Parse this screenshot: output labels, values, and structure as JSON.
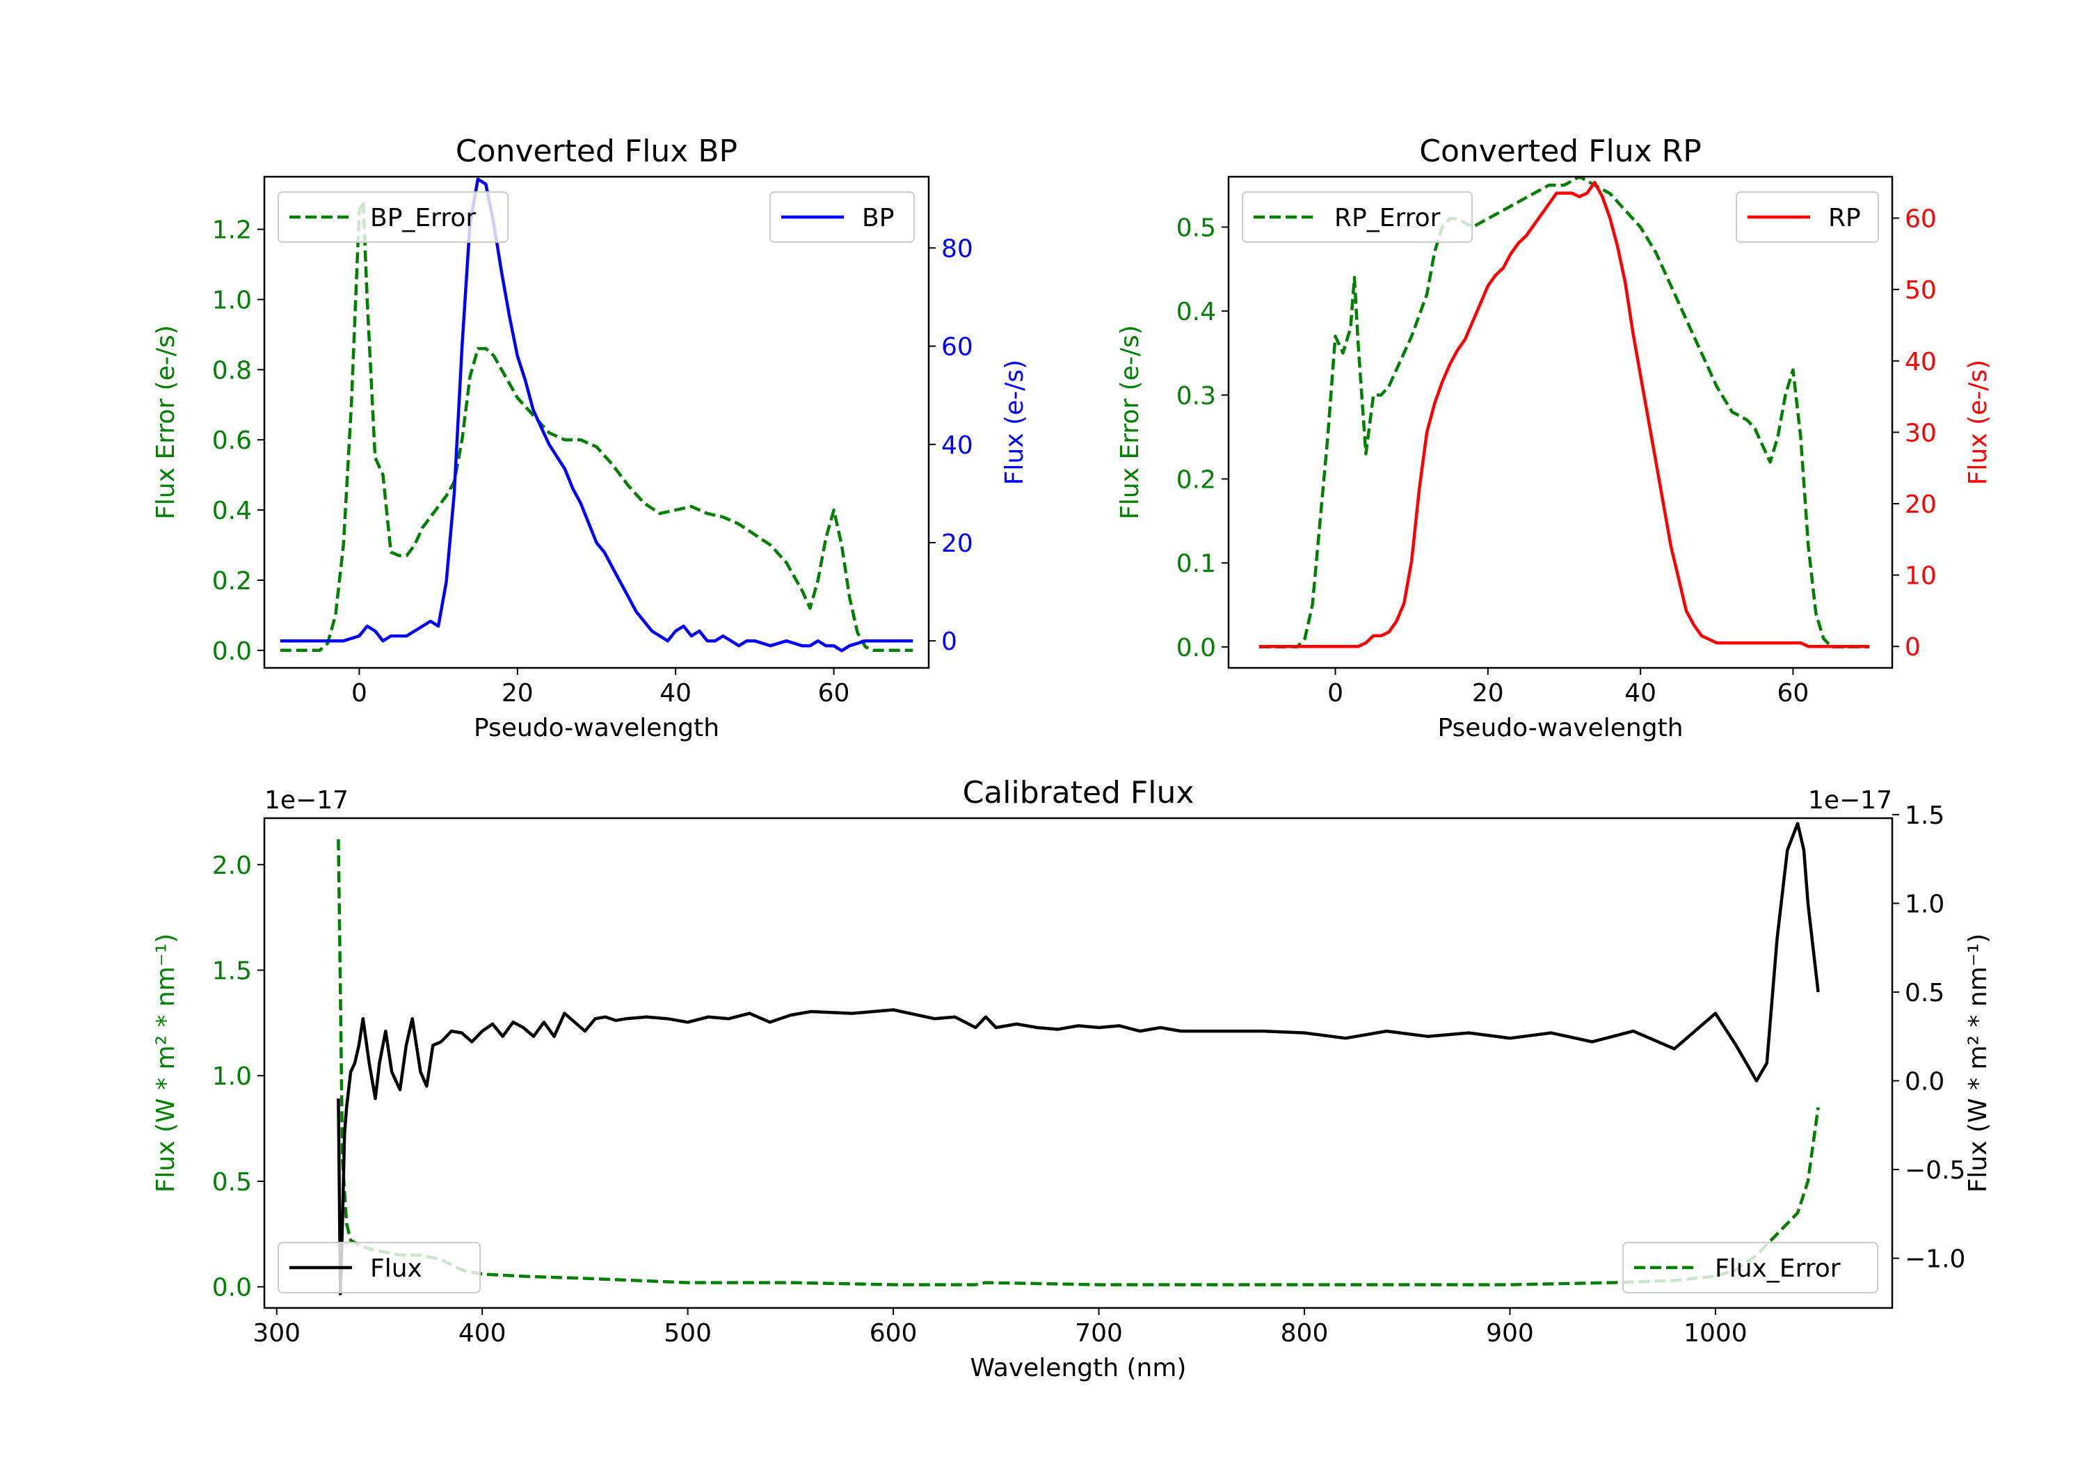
{
  "chart_data": [
    {
      "type": "line",
      "title": "Converted Flux BP",
      "xlabel": "Pseudo-wavelength",
      "ylabel_left": "Flux Error (e-/s)",
      "ylabel_right": "Flux (e-/s)",
      "xlim": [
        -12,
        72
      ],
      "ylim_left": [
        -0.05,
        1.35
      ],
      "ylim_right": [
        -5.5,
        94.5
      ],
      "xticks": [
        "0",
        "20",
        "40",
        "60"
      ],
      "xtick_values": [
        0,
        20,
        40,
        60
      ],
      "yticks_left": [
        "0.0",
        "0.2",
        "0.4",
        "0.6",
        "0.8",
        "1.0",
        "1.2"
      ],
      "ytick_values_left": [
        0.0,
        0.2,
        0.4,
        0.6,
        0.8,
        1.0,
        1.2
      ],
      "yticks_right": [
        "0",
        "20",
        "40",
        "60",
        "80"
      ],
      "ytick_values_right": [
        0,
        20,
        40,
        60,
        80
      ],
      "series": [
        {
          "name": "BP_Error",
          "axis": "left",
          "color": "#008000",
          "style": "dashed",
          "x": [
            -10,
            -5,
            -4,
            -3,
            -2,
            -1,
            0,
            0.5,
            1,
            2,
            3,
            4,
            5,
            6,
            7,
            8,
            9,
            10,
            11,
            12,
            13,
            14,
            15,
            16,
            17,
            18,
            19,
            20,
            22,
            24,
            26,
            28,
            30,
            32,
            34,
            36,
            38,
            40,
            42,
            44,
            46,
            48,
            50,
            52,
            54,
            56,
            57,
            58,
            59,
            60,
            61,
            62,
            63,
            64,
            65,
            70
          ],
          "values": [
            0,
            0,
            0.02,
            0.1,
            0.3,
            0.7,
            1.25,
            1.28,
            1.0,
            0.55,
            0.5,
            0.28,
            0.27,
            0.27,
            0.3,
            0.35,
            0.38,
            0.41,
            0.44,
            0.48,
            0.6,
            0.78,
            0.86,
            0.86,
            0.84,
            0.8,
            0.76,
            0.72,
            0.67,
            0.62,
            0.6,
            0.6,
            0.58,
            0.53,
            0.47,
            0.42,
            0.39,
            0.4,
            0.41,
            0.39,
            0.38,
            0.36,
            0.33,
            0.3,
            0.25,
            0.17,
            0.12,
            0.2,
            0.32,
            0.4,
            0.3,
            0.15,
            0.05,
            0.01,
            0,
            0
          ]
        },
        {
          "name": "BP",
          "axis": "right",
          "color": "#0000ff",
          "style": "solid",
          "x": [
            -10,
            -2,
            0,
            1,
            2,
            3,
            4,
            5,
            6,
            7,
            8,
            9,
            10,
            11,
            12,
            13,
            14,
            15,
            16,
            17,
            18,
            19,
            20,
            21,
            22,
            24,
            26,
            27,
            28,
            29,
            30,
            31,
            32,
            33,
            34,
            35,
            36,
            37,
            38,
            39,
            40,
            41,
            42,
            43,
            44,
            45,
            46,
            47,
            48,
            49,
            50,
            52,
            54,
            56,
            57,
            58,
            59,
            60,
            61,
            62,
            64,
            70
          ],
          "values": [
            0,
            0,
            1,
            3,
            2,
            0,
            1,
            1,
            1,
            2,
            3,
            4,
            3,
            12,
            30,
            60,
            85,
            94,
            93,
            85,
            75,
            66,
            58,
            53,
            47,
            40,
            35,
            31,
            28,
            24,
            20,
            18,
            15,
            12,
            9,
            6,
            4,
            2,
            1,
            0,
            2,
            3,
            1,
            2,
            0,
            0,
            1,
            0,
            -1,
            0,
            0,
            -1,
            0,
            -1,
            -1,
            0,
            -1,
            -1,
            -2,
            -1,
            0,
            0
          ]
        }
      ]
    },
    {
      "type": "line",
      "title": "Converted Flux RP",
      "xlabel": "Pseudo-wavelength",
      "ylabel_left": "Flux Error (e-/s)",
      "ylabel_right": "Flux (e-/s)",
      "xlim": [
        -14,
        73
      ],
      "ylim_left": [
        -0.025,
        0.56
      ],
      "ylim_right": [
        -3.0,
        65.8
      ],
      "xticks": [
        "0",
        "20",
        "40",
        "60"
      ],
      "xtick_values": [
        0,
        20,
        40,
        60
      ],
      "yticks_left": [
        "0.0",
        "0.1",
        "0.2",
        "0.3",
        "0.4",
        "0.5"
      ],
      "ytick_values_left": [
        0.0,
        0.1,
        0.2,
        0.3,
        0.4,
        0.5
      ],
      "yticks_right": [
        "0",
        "10",
        "20",
        "30",
        "40",
        "50",
        "60"
      ],
      "ytick_values_right": [
        0,
        10,
        20,
        30,
        40,
        50,
        60
      ],
      "series": [
        {
          "name": "RP_Error",
          "axis": "left",
          "color": "#008000",
          "style": "dashed",
          "x": [
            -10,
            -5,
            -4,
            -3,
            -2,
            -1,
            0,
            1,
            2,
            2.5,
            3,
            4,
            5,
            6,
            7,
            8,
            10,
            12,
            13,
            14,
            15,
            16,
            18,
            20,
            22,
            24,
            26,
            28,
            30,
            32,
            34,
            36,
            38,
            40,
            42,
            44,
            46,
            48,
            50,
            52,
            54,
            55,
            56,
            57,
            58,
            59,
            60,
            61,
            62,
            63,
            64,
            65,
            66,
            70
          ],
          "values": [
            0,
            0,
            0.01,
            0.05,
            0.15,
            0.25,
            0.37,
            0.35,
            0.38,
            0.44,
            0.36,
            0.23,
            0.3,
            0.3,
            0.31,
            0.33,
            0.37,
            0.42,
            0.47,
            0.5,
            0.51,
            0.51,
            0.5,
            0.51,
            0.52,
            0.53,
            0.54,
            0.55,
            0.55,
            0.56,
            0.55,
            0.54,
            0.52,
            0.5,
            0.47,
            0.43,
            0.39,
            0.35,
            0.31,
            0.28,
            0.27,
            0.26,
            0.24,
            0.22,
            0.25,
            0.3,
            0.33,
            0.25,
            0.12,
            0.04,
            0.01,
            0,
            0,
            0
          ]
        },
        {
          "name": "RP",
          "axis": "right",
          "color": "#ff0000",
          "style": "solid",
          "x": [
            -10,
            0,
            2,
            3,
            4,
            5,
            6,
            7,
            8,
            9,
            10,
            11,
            12,
            13,
            14,
            15,
            16,
            17,
            18,
            19,
            20,
            21,
            22,
            23,
            24,
            25,
            26,
            27,
            28,
            29,
            30,
            31,
            32,
            33,
            34,
            35,
            36,
            37,
            38,
            39,
            40,
            41,
            42,
            43,
            44,
            45,
            46,
            47,
            48,
            49,
            50,
            51,
            52,
            53,
            54,
            55,
            56,
            57,
            58,
            59,
            60,
            61,
            62,
            64,
            70
          ],
          "values": [
            0,
            0,
            0,
            0,
            0.5,
            1.5,
            1.5,
            2,
            3.5,
            6,
            12,
            22,
            30,
            34,
            37,
            39.5,
            41.5,
            43,
            45.5,
            48,
            50.5,
            52,
            53,
            55,
            56.5,
            57.5,
            59,
            60.5,
            62,
            63.5,
            63.5,
            63.5,
            63,
            63.5,
            65,
            63,
            60,
            56,
            51,
            44,
            38,
            32,
            26,
            20,
            14,
            9.5,
            5,
            3,
            1.5,
            1,
            0.5,
            0.5,
            0.5,
            0.5,
            0.5,
            0.5,
            0.5,
            0.5,
            0.5,
            0.5,
            0.5,
            0.5,
            0,
            0,
            0
          ]
        }
      ]
    },
    {
      "type": "line",
      "title": "Calibrated Flux",
      "xlabel": "Wavelength (nm)",
      "ylabel_left": "Flux (W * m² * nm⁻¹)",
      "ylabel_right": "Flux (W * m² * nm⁻¹)",
      "offset_left": "1e−17",
      "offset_right": "1e−17",
      "xlim": [
        294,
        1086
      ],
      "ylim_left": [
        -0.1,
        2.22
      ],
      "ylim_right": [
        -1.28,
        1.48
      ],
      "xticks": [
        "300",
        "400",
        "500",
        "600",
        "700",
        "800",
        "900",
        "1000"
      ],
      "xtick_values": [
        300,
        400,
        500,
        600,
        700,
        800,
        900,
        1000
      ],
      "yticks_left": [
        "0.0",
        "0.5",
        "1.0",
        "1.5",
        "2.0"
      ],
      "ytick_values_left": [
        0.0,
        0.5,
        1.0,
        1.5,
        2.0
      ],
      "yticks_right": [
        "−1.0",
        "−0.5",
        "0.0",
        "0.5",
        "1.0",
        "1.5"
      ],
      "ytick_values_right": [
        -1.0,
        -0.5,
        0.0,
        0.5,
        1.0,
        1.5
      ],
      "series": [
        {
          "name": "Flux_Error",
          "axis": "left",
          "color": "#008000",
          "style": "dashed",
          "x": [
            330,
            331,
            332,
            334,
            336,
            340,
            345,
            350,
            360,
            370,
            380,
            390,
            400,
            420,
            450,
            500,
            550,
            600,
            640,
            645,
            700,
            800,
            900,
            950,
            980,
            1000,
            1010,
            1020,
            1030,
            1040,
            1045,
            1050
          ],
          "values": [
            2.12,
            1.4,
            0.6,
            0.3,
            0.22,
            0.2,
            0.18,
            0.17,
            0.15,
            0.15,
            0.13,
            0.08,
            0.06,
            0.05,
            0.04,
            0.02,
            0.02,
            0.01,
            0.01,
            0.02,
            0.01,
            0.01,
            0.01,
            0.02,
            0.03,
            0.05,
            0.08,
            0.15,
            0.25,
            0.35,
            0.5,
            0.85
          ]
        },
        {
          "name": "Flux",
          "axis": "right",
          "color": "#000000",
          "style": "solid",
          "x": [
            330,
            331,
            332,
            333,
            334,
            336,
            338,
            340,
            342,
            345,
            348,
            350,
            353,
            356,
            360,
            363,
            366,
            370,
            373,
            376,
            380,
            385,
            390,
            395,
            400,
            405,
            410,
            415,
            420,
            425,
            430,
            435,
            440,
            445,
            450,
            455,
            460,
            465,
            470,
            480,
            490,
            500,
            510,
            520,
            530,
            540,
            550,
            560,
            580,
            600,
            620,
            630,
            640,
            645,
            650,
            660,
            670,
            680,
            690,
            700,
            710,
            720,
            730,
            740,
            760,
            780,
            800,
            820,
            840,
            860,
            880,
            900,
            920,
            940,
            960,
            980,
            990,
            1000,
            1010,
            1020,
            1025,
            1030,
            1035,
            1040,
            1043,
            1045,
            1048,
            1050
          ],
          "values": [
            -0.1,
            -1.2,
            -0.8,
            -0.3,
            -0.15,
            0.05,
            0.1,
            0.2,
            0.35,
            0.1,
            -0.1,
            0.1,
            0.28,
            0.05,
            -0.05,
            0.2,
            0.35,
            0.05,
            -0.03,
            0.2,
            0.22,
            0.28,
            0.27,
            0.22,
            0.28,
            0.32,
            0.25,
            0.33,
            0.3,
            0.25,
            0.33,
            0.25,
            0.38,
            0.33,
            0.28,
            0.35,
            0.36,
            0.34,
            0.35,
            0.36,
            0.35,
            0.33,
            0.36,
            0.35,
            0.38,
            0.33,
            0.37,
            0.39,
            0.38,
            0.4,
            0.35,
            0.36,
            0.3,
            0.36,
            0.3,
            0.32,
            0.3,
            0.29,
            0.31,
            0.3,
            0.31,
            0.28,
            0.3,
            0.28,
            0.28,
            0.28,
            0.27,
            0.24,
            0.28,
            0.25,
            0.27,
            0.24,
            0.27,
            0.22,
            0.28,
            0.18,
            0.28,
            0.38,
            0.2,
            0.0,
            0.1,
            0.8,
            1.3,
            1.45,
            1.3,
            1.0,
            0.7,
            0.5
          ]
        }
      ]
    }
  ]
}
